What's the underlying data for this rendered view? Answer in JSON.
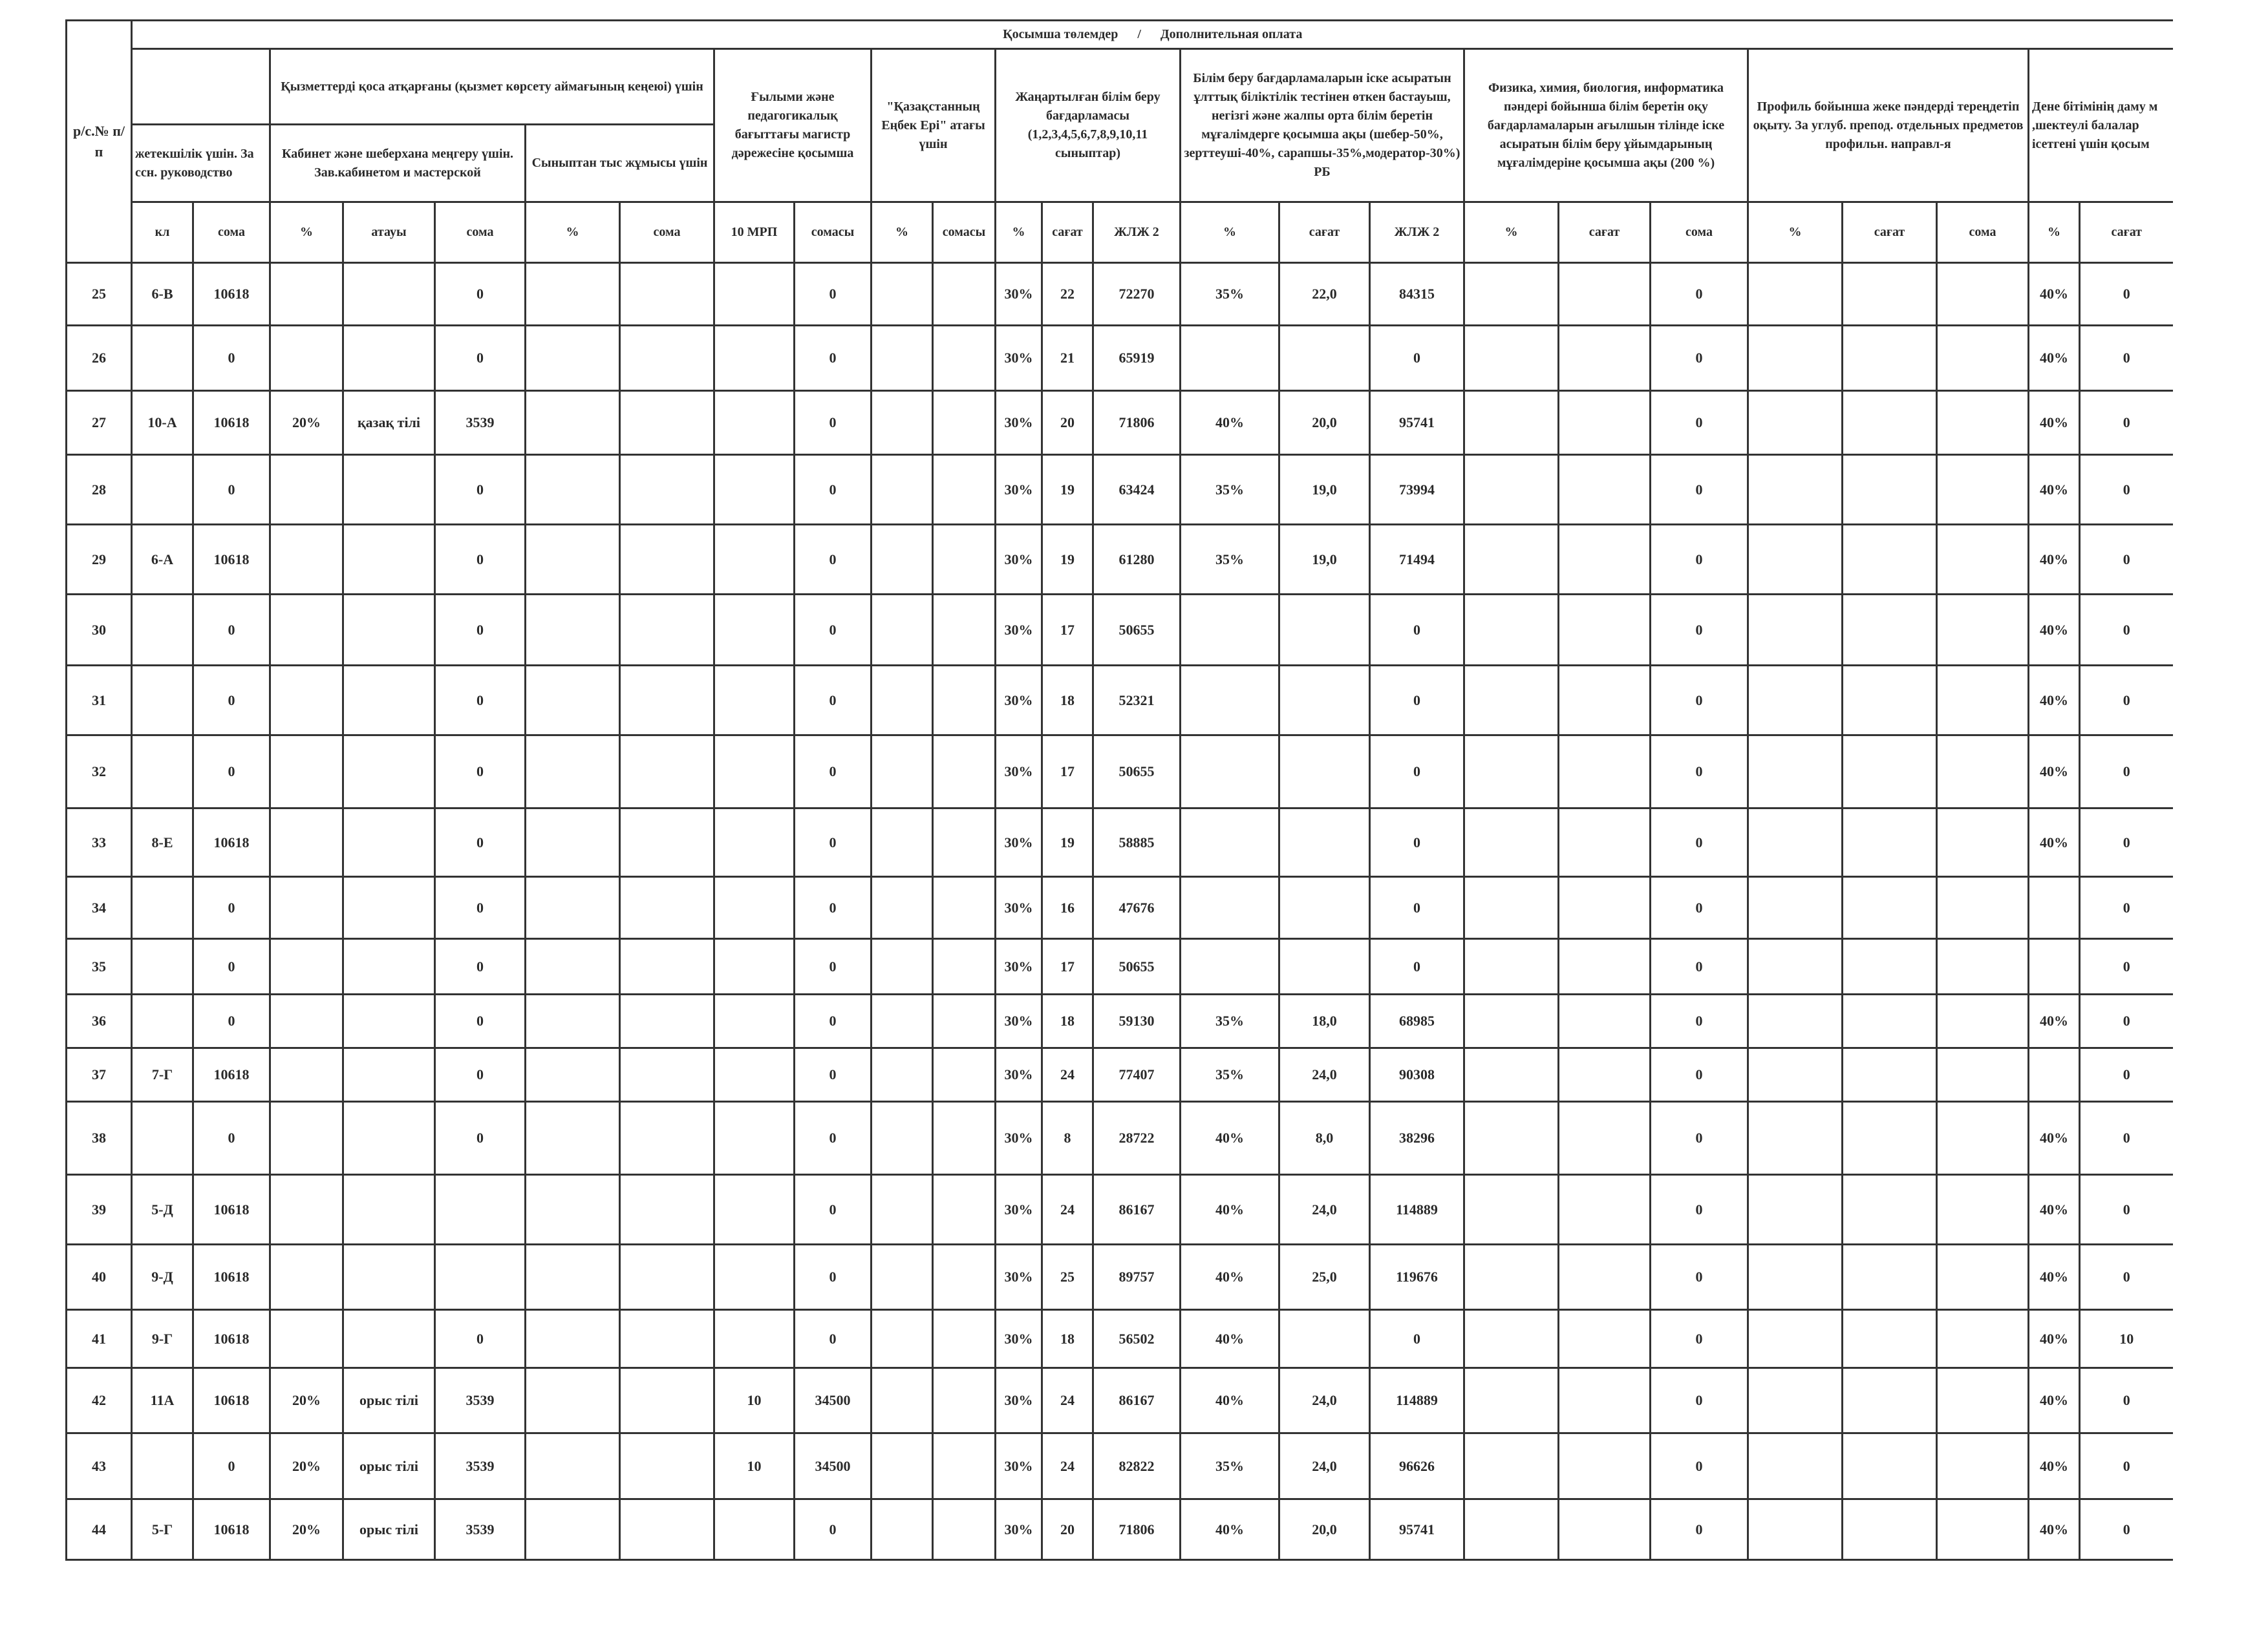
{
  "header": {
    "row_number": "р/с.№ п/п",
    "main_title": "Қосымша төлемдер      /      Дополнительная оплата",
    "class_lead": "жетекшілік үшін. За ссн. руководство",
    "combined_duties": "Қызметтерді қоса атқарғаны (қызмет көрсету аймағының кеңеюі) үшін",
    "cabinet": "Кабинет және шеберхана меңгеру үшін. Зав.кабинетом и мастерской",
    "extracurricular": "Сыныптан тыс жұмысы үшін",
    "master_degree": "Ғылыми және педагогикалық бағыттағы магистр дәрежесіне қосымша",
    "hero_title": "\"Қазақстанның Еңбек Ері\" атағы үшін",
    "updated_program": "Жаңартылған білім беру бағдарламасы (1,2,3,4,5,6,7,8,9,10,11 сыныптар)",
    "qualification": "Білім беру бағдарламаларын іске асыратын ұлттық біліктілік тестінен өткен бастауыш, негізгі және жалпы орта білім беретін мұғалімдерге қосымша ақы (шебер-50%, зерттеуші-40%, сарапшы-35%,модератор-30%) РБ",
    "english_stem": "Физика, химия, биология, информатика пәндері бойынша білім беретін оқу бағдарламаларын ағылшын тілінде іске асыратын білім беру ұйымдарының мұғалімдеріне қосымша ақы (200 %)",
    "profile": "Профиль бойынша жеке пәндерді тереңдетіп оқыту. За углуб. препод. отдельных предметов профильн. направл-я",
    "special_needs": "Дене бітімінің даму м ,шектеулі балалар ісетгені үшін қосым",
    "subheaders": [
      "кл",
      "сома",
      "%",
      "атауы",
      "сома",
      "%",
      "сома",
      "10 МРП",
      "сомасы",
      "%",
      "сомасы",
      "%",
      "сағат",
      "ЖЛЖ 2",
      "%",
      "сағат",
      "ЖЛЖ 2",
      "%",
      "сағат",
      "сома",
      "%",
      "сағат",
      "сома",
      "%",
      "сағат"
    ]
  },
  "rows": [
    [
      "25",
      "6-В",
      "10618",
      "",
      "",
      "0",
      "",
      "",
      "",
      "0",
      "",
      "",
      "30%",
      "22",
      "72270",
      "35%",
      "22,0",
      "84315",
      "",
      "",
      "0",
      "",
      "",
      "",
      "40%",
      "0"
    ],
    [
      "26",
      "",
      "0",
      "",
      "",
      "0",
      "",
      "",
      "",
      "0",
      "",
      "",
      "30%",
      "21",
      "65919",
      "",
      "",
      "0",
      "",
      "",
      "0",
      "",
      "",
      "",
      "40%",
      "0"
    ],
    [
      "27",
      "10-А",
      "10618",
      "20%",
      "қазақ тілі",
      "3539",
      "",
      "",
      "",
      "0",
      "",
      "",
      "30%",
      "20",
      "71806",
      "40%",
      "20,0",
      "95741",
      "",
      "",
      "0",
      "",
      "",
      "",
      "40%",
      "0"
    ],
    [
      "28",
      "",
      "0",
      "",
      "",
      "0",
      "",
      "",
      "",
      "0",
      "",
      "",
      "30%",
      "19",
      "63424",
      "35%",
      "19,0",
      "73994",
      "",
      "",
      "0",
      "",
      "",
      "",
      "40%",
      "0"
    ],
    [
      "29",
      "6-А",
      "10618",
      "",
      "",
      "0",
      "",
      "",
      "",
      "0",
      "",
      "",
      "30%",
      "19",
      "61280",
      "35%",
      "19,0",
      "71494",
      "",
      "",
      "0",
      "",
      "",
      "",
      "40%",
      "0"
    ],
    [
      "30",
      "",
      "0",
      "",
      "",
      "0",
      "",
      "",
      "",
      "0",
      "",
      "",
      "30%",
      "17",
      "50655",
      "",
      "",
      "0",
      "",
      "",
      "0",
      "",
      "",
      "",
      "40%",
      "0"
    ],
    [
      "31",
      "",
      "0",
      "",
      "",
      "0",
      "",
      "",
      "",
      "0",
      "",
      "",
      "30%",
      "18",
      "52321",
      "",
      "",
      "0",
      "",
      "",
      "0",
      "",
      "",
      "",
      "40%",
      "0"
    ],
    [
      "32",
      "",
      "0",
      "",
      "",
      "0",
      "",
      "",
      "",
      "0",
      "",
      "",
      "30%",
      "17",
      "50655",
      "",
      "",
      "0",
      "",
      "",
      "0",
      "",
      "",
      "",
      "40%",
      "0"
    ],
    [
      "33",
      "8-Е",
      "10618",
      "",
      "",
      "0",
      "",
      "",
      "",
      "0",
      "",
      "",
      "30%",
      "19",
      "58885",
      "",
      "",
      "0",
      "",
      "",
      "0",
      "",
      "",
      "",
      "40%",
      "0"
    ],
    [
      "34",
      "",
      "0",
      "",
      "",
      "0",
      "",
      "",
      "",
      "0",
      "",
      "",
      "30%",
      "16",
      "47676",
      "",
      "",
      "0",
      "",
      "",
      "0",
      "",
      "",
      "",
      "",
      "0"
    ],
    [
      "35",
      "",
      "0",
      "",
      "",
      "0",
      "",
      "",
      "",
      "0",
      "",
      "",
      "30%",
      "17",
      "50655",
      "",
      "",
      "0",
      "",
      "",
      "0",
      "",
      "",
      "",
      "",
      "0"
    ],
    [
      "36",
      "",
      "0",
      "",
      "",
      "0",
      "",
      "",
      "",
      "0",
      "",
      "",
      "30%",
      "18",
      "59130",
      "35%",
      "18,0",
      "68985",
      "",
      "",
      "0",
      "",
      "",
      "",
      "40%",
      "0"
    ],
    [
      "37",
      "7-Г",
      "10618",
      "",
      "",
      "0",
      "",
      "",
      "",
      "0",
      "",
      "",
      "30%",
      "24",
      "77407",
      "35%",
      "24,0",
      "90308",
      "",
      "",
      "0",
      "",
      "",
      "",
      "",
      "0"
    ],
    [
      "38",
      "",
      "0",
      "",
      "",
      "0",
      "",
      "",
      "",
      "0",
      "",
      "",
      "30%",
      "8",
      "28722",
      "40%",
      "8,0",
      "38296",
      "",
      "",
      "0",
      "",
      "",
      "",
      "40%",
      "0"
    ],
    [
      "39",
      "5-Д",
      "10618",
      "",
      "",
      "",
      "",
      "",
      "",
      "0",
      "",
      "",
      "30%",
      "24",
      "86167",
      "40%",
      "24,0",
      "114889",
      "",
      "",
      "0",
      "",
      "",
      "",
      "40%",
      "0"
    ],
    [
      "40",
      "9-Д",
      "10618",
      "",
      "",
      "",
      "",
      "",
      "",
      "0",
      "",
      "",
      "30%",
      "25",
      "89757",
      "40%",
      "25,0",
      "119676",
      "",
      "",
      "0",
      "",
      "",
      "",
      "40%",
      "0"
    ],
    [
      "41",
      "9-Г",
      "10618",
      "",
      "",
      "0",
      "",
      "",
      "",
      "0",
      "",
      "",
      "30%",
      "18",
      "56502",
      "40%",
      "",
      "0",
      "",
      "",
      "0",
      "",
      "",
      "",
      "40%",
      "10"
    ],
    [
      "42",
      "11А",
      "10618",
      "20%",
      "орыс тілі",
      "3539",
      "",
      "",
      "10",
      "34500",
      "",
      "",
      "30%",
      "24",
      "86167",
      "40%",
      "24,0",
      "114889",
      "",
      "",
      "0",
      "",
      "",
      "",
      "40%",
      "0"
    ],
    [
      "43",
      "",
      "0",
      "20%",
      "орыс тілі",
      "3539",
      "",
      "",
      "10",
      "34500",
      "",
      "",
      "30%",
      "24",
      "82822",
      "35%",
      "24,0",
      "96626",
      "",
      "",
      "0",
      "",
      "",
      "",
      "40%",
      "0"
    ],
    [
      "44",
      "5-Г",
      "10618",
      "20%",
      "орыс тілі",
      "3539",
      "",
      "",
      "",
      "0",
      "",
      "",
      "30%",
      "20",
      "71806",
      "40%",
      "20,0",
      "95741",
      "",
      "",
      "0",
      "",
      "",
      "",
      "40%",
      "0"
    ]
  ]
}
